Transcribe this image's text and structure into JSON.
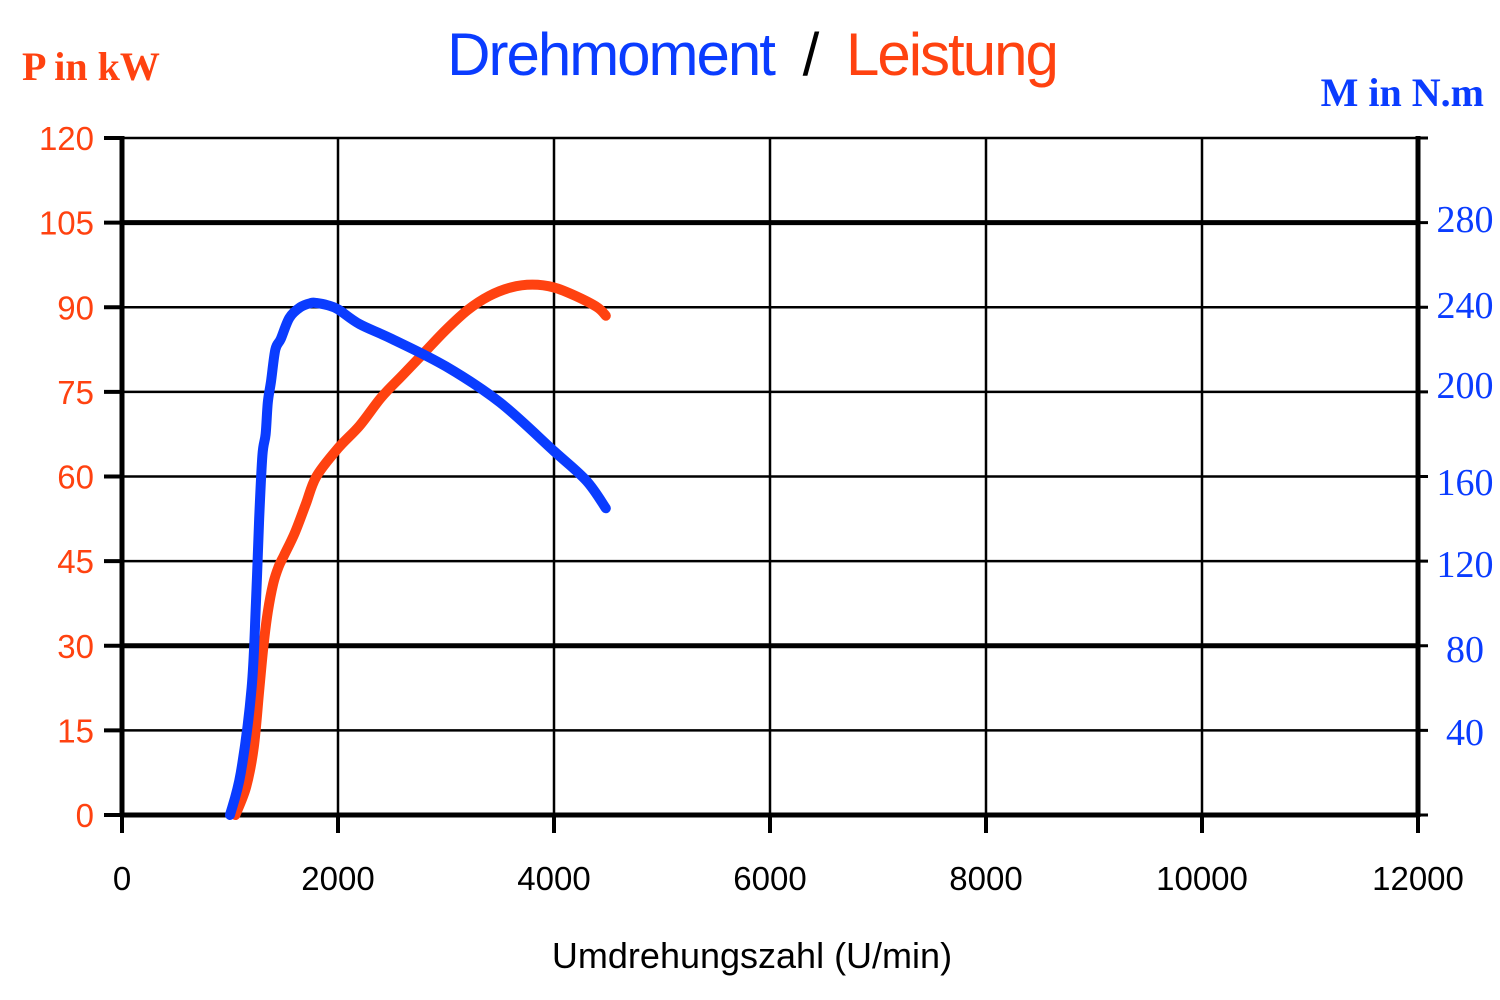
{
  "chart_data": {
    "type": "line",
    "title": {
      "part1": "Drehmoment",
      "separator": "/",
      "part2": "Leistung"
    },
    "xlabel": "Umdrehungszahl (U/min)",
    "ylabel_left": "P in kW",
    "ylabel_right": "M in N.m",
    "xlim": [
      0,
      12000
    ],
    "ylim_left": [
      0,
      120
    ],
    "ylim_right": [
      0,
      320
    ],
    "x_ticks": [
      "0",
      "2000",
      "4000",
      "6000",
      "8000",
      "10000",
      "12000"
    ],
    "y_ticks_left": [
      "0",
      "15",
      "30",
      "45",
      "60",
      "75",
      "90",
      "105",
      "120"
    ],
    "y_ticks_right": [
      "40",
      "80",
      "120",
      "160",
      "200",
      "240",
      "280"
    ],
    "grid": true,
    "colors": {
      "torque": "#0a3cff",
      "power": "#ff4210",
      "axis": "#000000"
    },
    "series": [
      {
        "axis": "left",
        "color": "#ff4210",
        "x": [
          1050,
          1150,
          1220,
          1270,
          1310,
          1350,
          1400,
          1450,
          1500,
          1600,
          1700,
          1800,
          2000,
          2200,
          2400,
          2600,
          2800,
          3000,
          3200,
          3400,
          3600,
          3800,
          4000,
          4200,
          4400,
          4480
        ],
        "y": [
          0,
          5,
          12,
          22,
          30,
          36,
          41,
          44,
          46,
          50,
          55,
          60,
          65,
          69,
          74,
          78,
          82,
          86,
          89.5,
          92,
          93.5,
          94,
          93.5,
          92,
          90,
          88.5
        ]
      },
      {
        "axis": "right",
        "color": "#0a3cff",
        "x": [
          1000,
          1100,
          1200,
          1240,
          1270,
          1300,
          1330,
          1350,
          1380,
          1420,
          1470,
          1550,
          1650,
          1750,
          1800,
          1900,
          2000,
          2200,
          2500,
          3000,
          3500,
          4000,
          4300,
          4480
        ],
        "y": [
          0,
          20,
          60,
          100,
          140,
          170,
          180,
          195,
          205,
          220,
          225,
          235,
          240,
          242,
          242,
          241,
          239,
          232,
          225,
          212,
          195,
          172,
          158,
          145
        ]
      }
    ]
  }
}
